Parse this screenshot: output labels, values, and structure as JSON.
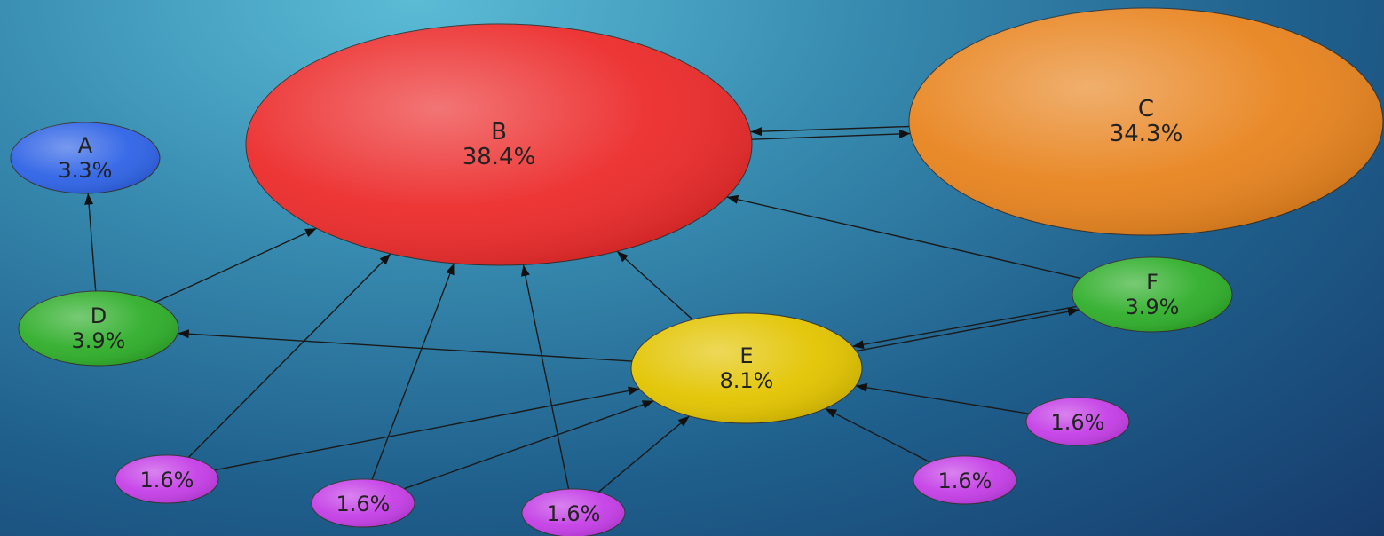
{
  "nodes": [
    {
      "id": "A",
      "name": "A",
      "value": "3.3%",
      "color": "#2f63e6"
    },
    {
      "id": "B",
      "name": "B",
      "value": "38.4%",
      "color": "#ec2b2b"
    },
    {
      "id": "C",
      "name": "C",
      "value": "34.3%",
      "color": "#e8841f"
    },
    {
      "id": "D",
      "name": "D",
      "value": "3.9%",
      "color": "#2fae2a"
    },
    {
      "id": "E",
      "name": "E",
      "value": "8.1%",
      "color": "#e2c400"
    },
    {
      "id": "F",
      "name": "F",
      "value": "3.9%",
      "color": "#2fae2a"
    },
    {
      "id": "P1",
      "name": "",
      "value": "1.6%",
      "color": "#c43ee6"
    },
    {
      "id": "P2",
      "name": "",
      "value": "1.6%",
      "color": "#c43ee6"
    },
    {
      "id": "P3",
      "name": "",
      "value": "1.6%",
      "color": "#c43ee6"
    },
    {
      "id": "P4",
      "name": "",
      "value": "1.6%",
      "color": "#c43ee6"
    },
    {
      "id": "P5",
      "name": "",
      "value": "1.6%",
      "color": "#c43ee6"
    }
  ],
  "edges": [
    {
      "from": "D",
      "to": "A"
    },
    {
      "from": "D",
      "to": "B"
    },
    {
      "from": "B",
      "to": "C"
    },
    {
      "from": "C",
      "to": "B"
    },
    {
      "from": "F",
      "to": "B"
    },
    {
      "from": "E",
      "to": "B"
    },
    {
      "from": "E",
      "to": "D"
    },
    {
      "from": "E",
      "to": "F"
    },
    {
      "from": "F",
      "to": "E"
    },
    {
      "from": "P1",
      "to": "B"
    },
    {
      "from": "P1",
      "to": "E"
    },
    {
      "from": "P2",
      "to": "B"
    },
    {
      "from": "P2",
      "to": "E"
    },
    {
      "from": "P3",
      "to": "B"
    },
    {
      "from": "P3",
      "to": "E"
    },
    {
      "from": "P4",
      "to": "E"
    },
    {
      "from": "P5",
      "to": "E"
    }
  ]
}
